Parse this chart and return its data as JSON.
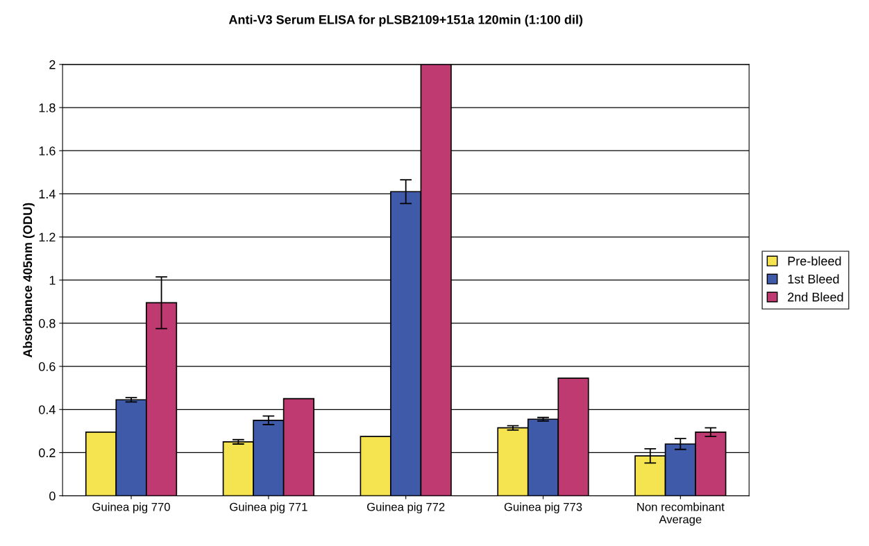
{
  "chart_data": {
    "type": "bar",
    "title": "Anti-V3 Serum ELISA for pLSB2109+151a 120min (1:100 dil)",
    "ylabel": "Absorbance 405nm (ODU)",
    "categories": [
      "Guinea pig 770",
      "Guinea pig 771",
      "Guinea pig 772",
      "Guinea pig 773",
      "Non recombinant\nAverage"
    ],
    "series": [
      {
        "name": "Pre-bleed",
        "color": "#f5e44f",
        "values": [
          0.295,
          0.25,
          0.275,
          0.315,
          0.185
        ],
        "errors": [
          null,
          0.01,
          null,
          0.01,
          0.033
        ]
      },
      {
        "name": "1st Bleed",
        "color": "#3f5aa8",
        "values": [
          0.445,
          0.35,
          1.41,
          0.355,
          0.24
        ],
        "errors": [
          0.01,
          0.02,
          0.055,
          0.008,
          0.025
        ]
      },
      {
        "name": "2nd Bleed",
        "color": "#c03a72",
        "values": [
          0.895,
          0.45,
          2.0,
          0.545,
          0.295
        ],
        "errors": [
          0.12,
          null,
          null,
          null,
          0.02
        ]
      }
    ],
    "ylim": [
      0,
      2
    ],
    "yticks": [
      0,
      0.2,
      0.4,
      0.6,
      0.8,
      1,
      1.2,
      1.4,
      1.6,
      1.8,
      2
    ],
    "grid": "y",
    "legend": "right"
  }
}
